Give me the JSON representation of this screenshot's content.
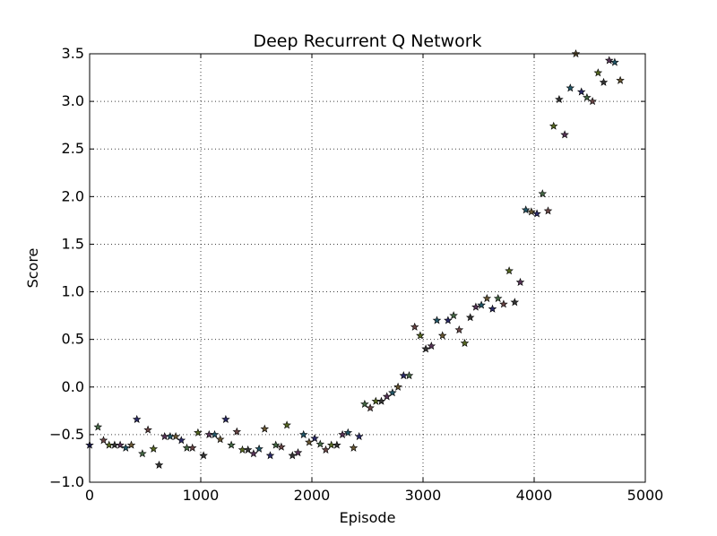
{
  "chart_data": {
    "type": "scatter",
    "title": "Deep Recurrent Q Network",
    "xlabel": "Episode",
    "ylabel": "Score",
    "xlim": [
      0,
      5000
    ],
    "ylim": [
      -1.0,
      3.5
    ],
    "xticks": [
      0,
      1000,
      2000,
      3000,
      4000,
      5000
    ],
    "xtick_labels": [
      "0",
      "1000",
      "2000",
      "3000",
      "4000",
      "5000"
    ],
    "yticks": [
      -1.0,
      -0.5,
      0.0,
      0.5,
      1.0,
      1.5,
      2.0,
      2.5,
      3.0,
      3.5
    ],
    "ytick_labels": [
      "−1.0",
      "−0.5",
      "0.0",
      "0.5",
      "1.0",
      "1.5",
      "2.0",
      "2.5",
      "3.0",
      "3.5"
    ],
    "grid": true,
    "marker": "star",
    "marker_colors": [
      "#2a2a66",
      "#446644",
      "#664444",
      "#556622",
      "#333333",
      "#553355",
      "#225566",
      "#665533"
    ],
    "series": [
      {
        "points": [
          [
            0,
            -0.61
          ],
          [
            75,
            -0.42
          ],
          [
            125,
            -0.56
          ],
          [
            175,
            -0.61
          ],
          [
            225,
            -0.61
          ],
          [
            275,
            -0.61
          ],
          [
            325,
            -0.64
          ],
          [
            375,
            -0.61
          ],
          [
            425,
            -0.34
          ],
          [
            475,
            -0.7
          ],
          [
            525,
            -0.45
          ],
          [
            575,
            -0.65
          ],
          [
            625,
            -0.82
          ],
          [
            675,
            -0.52
          ],
          [
            725,
            -0.52
          ],
          [
            775,
            -0.52
          ],
          [
            825,
            -0.56
          ],
          [
            875,
            -0.64
          ],
          [
            925,
            -0.64
          ],
          [
            975,
            -0.48
          ],
          [
            1025,
            -0.72
          ],
          [
            1075,
            -0.5
          ],
          [
            1125,
            -0.5
          ],
          [
            1175,
            -0.55
          ],
          [
            1225,
            -0.34
          ],
          [
            1275,
            -0.61
          ],
          [
            1325,
            -0.47
          ],
          [
            1375,
            -0.66
          ],
          [
            1425,
            -0.66
          ],
          [
            1475,
            -0.7
          ],
          [
            1525,
            -0.65
          ],
          [
            1575,
            -0.44
          ],
          [
            1625,
            -0.72
          ],
          [
            1675,
            -0.61
          ],
          [
            1725,
            -0.63
          ],
          [
            1775,
            -0.4
          ],
          [
            1825,
            -0.72
          ],
          [
            1875,
            -0.69
          ],
          [
            1925,
            -0.5
          ],
          [
            1975,
            -0.58
          ],
          [
            2025,
            -0.54
          ],
          [
            2075,
            -0.6
          ],
          [
            2125,
            -0.66
          ],
          [
            2175,
            -0.61
          ],
          [
            2225,
            -0.61
          ],
          [
            2275,
            -0.5
          ],
          [
            2325,
            -0.48
          ],
          [
            2375,
            -0.64
          ],
          [
            2425,
            -0.52
          ],
          [
            2475,
            -0.18
          ],
          [
            2525,
            -0.22
          ],
          [
            2575,
            -0.15
          ],
          [
            2625,
            -0.15
          ],
          [
            2675,
            -0.1
          ],
          [
            2725,
            -0.06
          ],
          [
            2775,
            0.0
          ],
          [
            2825,
            0.12
          ],
          [
            2875,
            0.12
          ],
          [
            2925,
            0.63
          ],
          [
            2975,
            0.54
          ],
          [
            3025,
            0.4
          ],
          [
            3075,
            0.43
          ],
          [
            3125,
            0.7
          ],
          [
            3175,
            0.54
          ],
          [
            3225,
            0.7
          ],
          [
            3275,
            0.75
          ],
          [
            3325,
            0.6
          ],
          [
            3375,
            0.46
          ],
          [
            3425,
            0.73
          ],
          [
            3475,
            0.84
          ],
          [
            3525,
            0.86
          ],
          [
            3575,
            0.93
          ],
          [
            3625,
            0.82
          ],
          [
            3675,
            0.93
          ],
          [
            3725,
            0.87
          ],
          [
            3775,
            1.22
          ],
          [
            3825,
            0.89
          ],
          [
            3875,
            1.1
          ],
          [
            3925,
            1.86
          ],
          [
            3975,
            1.84
          ],
          [
            4025,
            1.82
          ],
          [
            4075,
            2.03
          ],
          [
            4125,
            1.85
          ],
          [
            4175,
            2.74
          ],
          [
            4225,
            3.02
          ],
          [
            4275,
            2.65
          ],
          [
            4325,
            3.14
          ],
          [
            4375,
            3.5
          ],
          [
            4425,
            3.1
          ],
          [
            4475,
            3.04
          ],
          [
            4525,
            3.0
          ],
          [
            4575,
            3.3
          ],
          [
            4625,
            3.2
          ],
          [
            4675,
            3.43
          ],
          [
            4725,
            3.41
          ],
          [
            4775,
            3.22
          ]
        ]
      }
    ]
  }
}
